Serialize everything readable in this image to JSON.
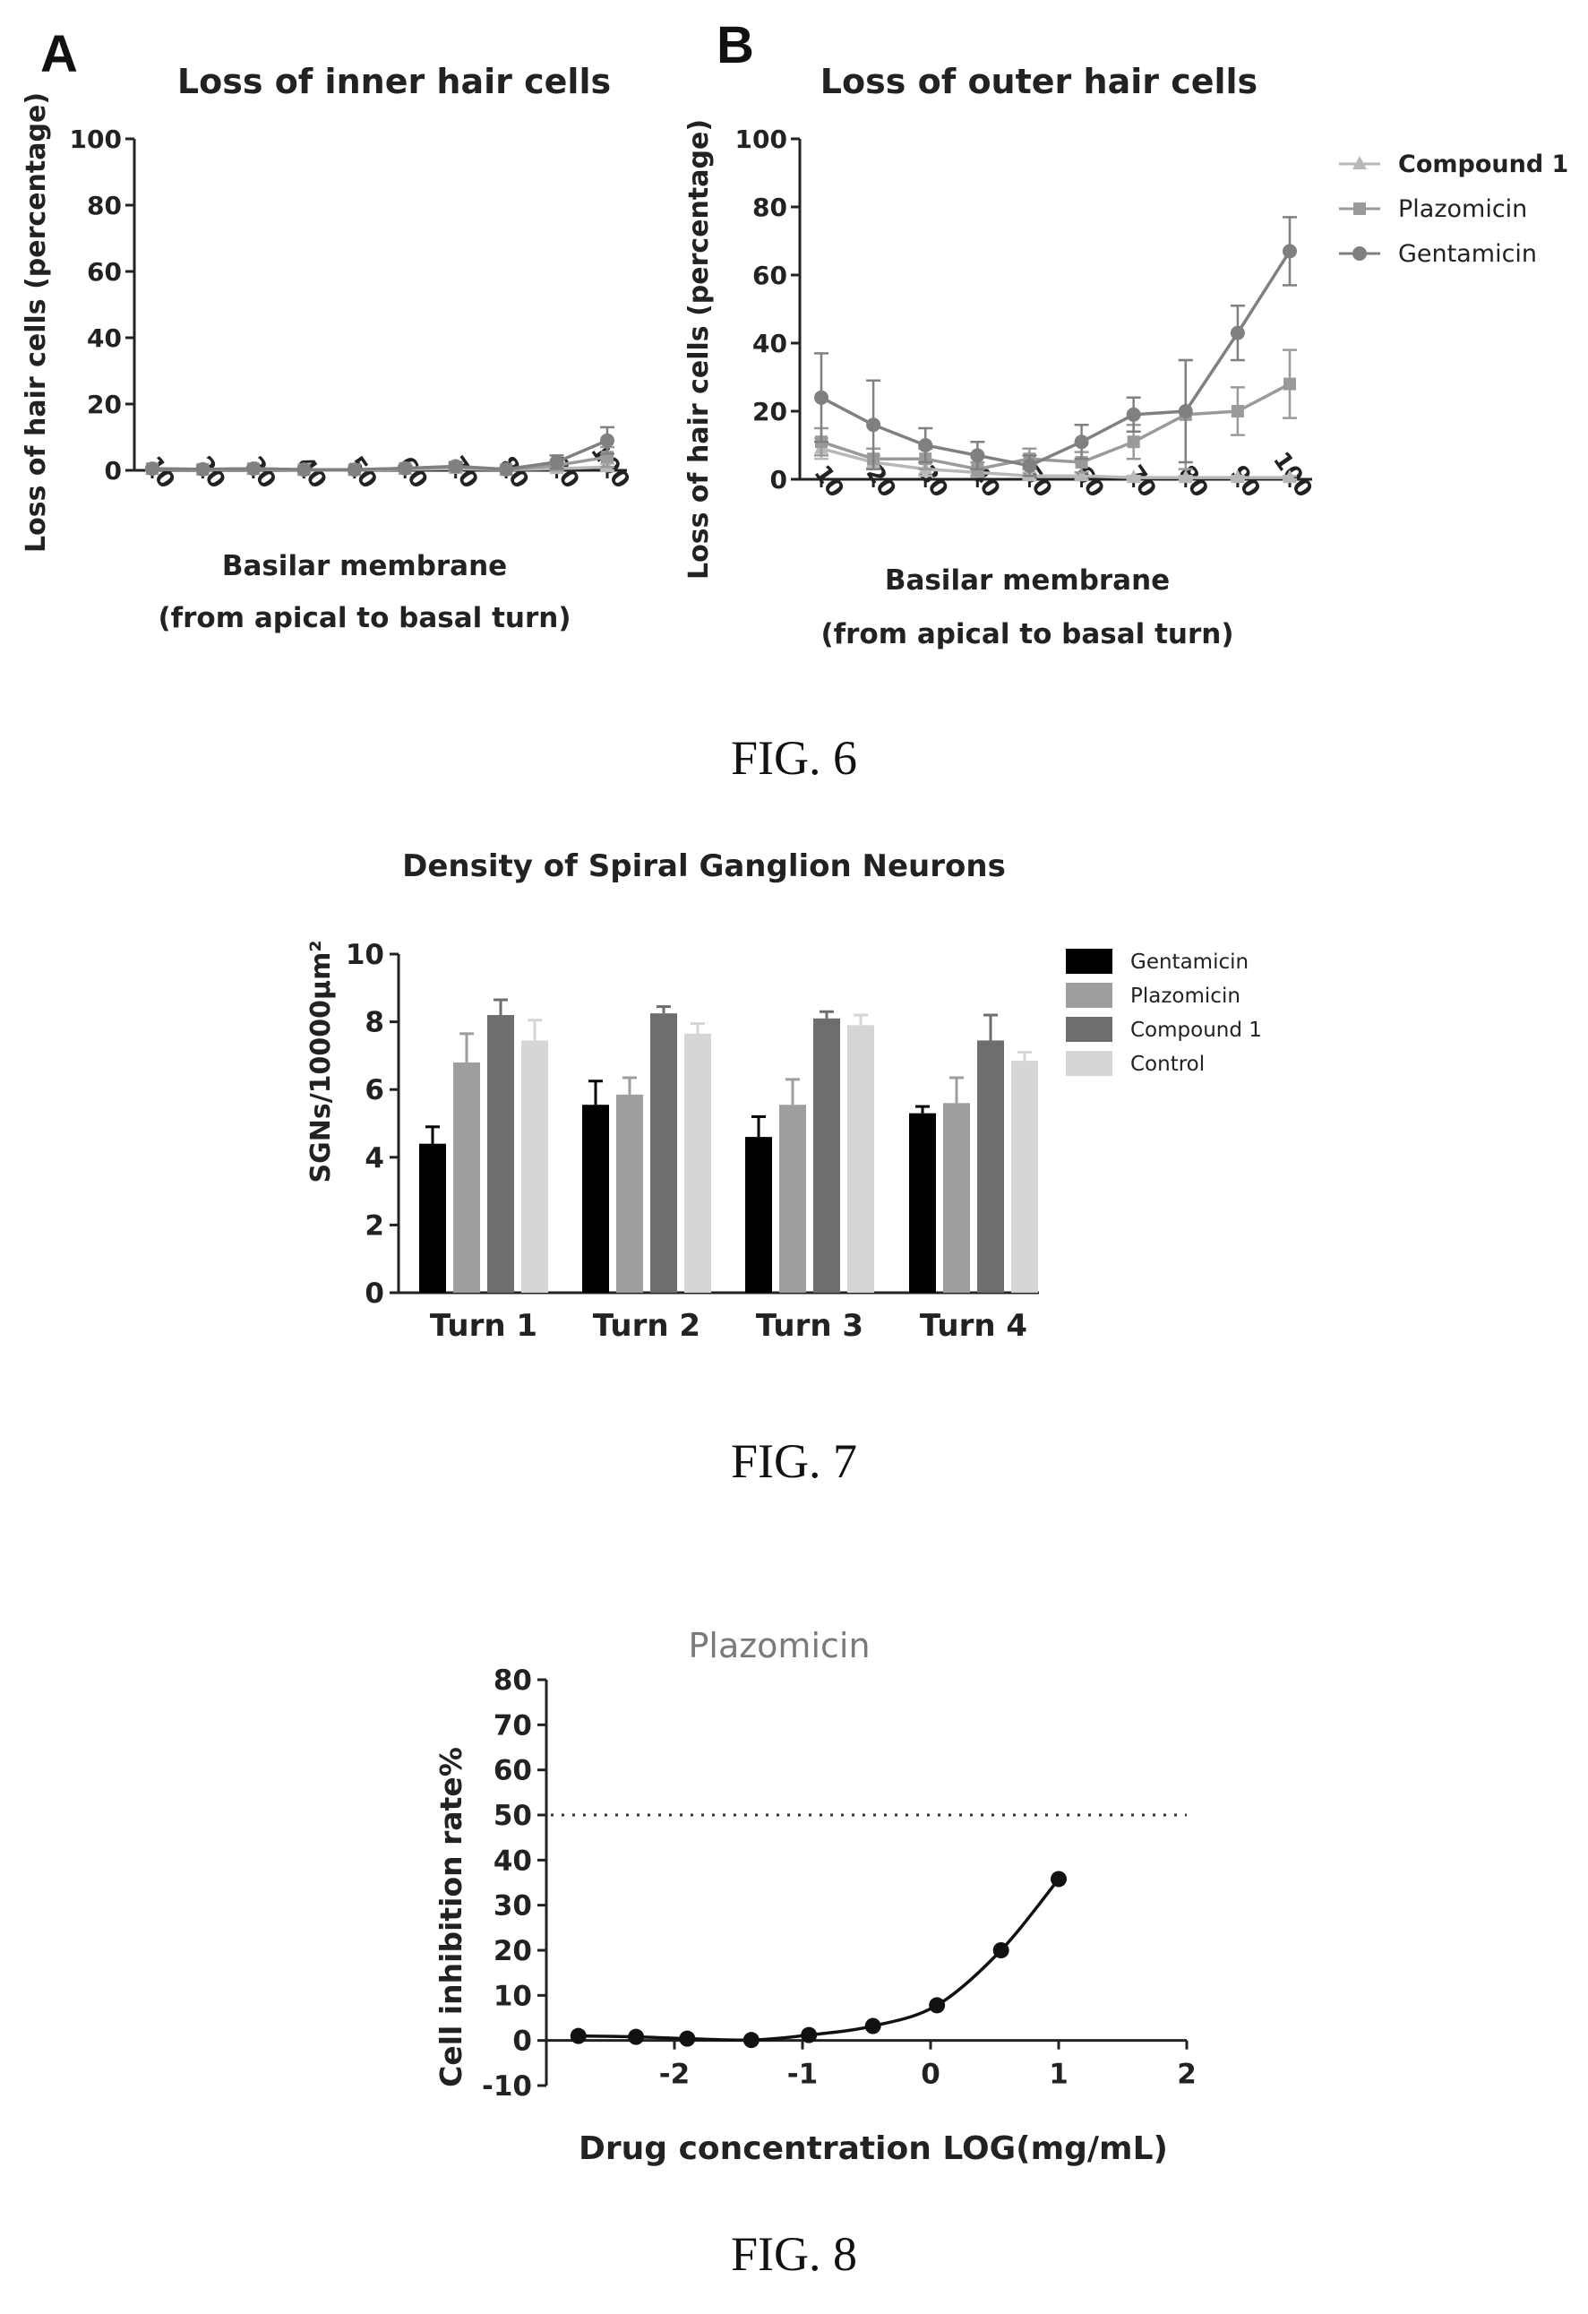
{
  "figures": {
    "fig6": {
      "caption": "FIG. 6",
      "panel_a": {
        "letter": "A",
        "title": "Loss of inner hair cells",
        "ylabel": "Loss of hair cells (percentage)",
        "xlabel_line1": "Basilar membrane",
        "xlabel_line2": "(from apical to basal turn)"
      },
      "panel_b": {
        "letter": "B",
        "title": "Loss of outer hair cells",
        "ylabel": "Loss of hair cells (percentage)",
        "xlabel_line1": "Basilar membrane",
        "xlabel_line2": "(from apical to basal turn)"
      }
    },
    "fig7": {
      "caption": "FIG. 7",
      "title": "Density of Spiral Ganglion Neurons",
      "ylabel": "SGNs/10000µm²"
    },
    "fig8": {
      "caption": "FIG. 8",
      "title": "Plazomicin",
      "ylabel": "Cell inhibition rate%",
      "xlabel": "Drug concentration LOG(mg/mL)"
    }
  },
  "colors": {
    "compound1": "#b8b8b8",
    "plazomicin": "#9a9a9a",
    "gentamicin": "#808080",
    "bar_gentamicin": "#000000",
    "bar_plazomicin": "#9e9e9e",
    "bar_compound1": "#6e6e6e",
    "bar_control": "#d6d6d6",
    "axis": "#222222"
  },
  "chart_data": [
    {
      "id": "fig6a",
      "type": "line",
      "title": "Loss of inner hair cells",
      "xlabel": "Basilar membrane (from apical to basal turn)",
      "ylabel": "Loss of hair cells (percentage)",
      "ylim": [
        0,
        100
      ],
      "yticks": [
        "0",
        "20",
        "40",
        "60",
        "80",
        "100"
      ],
      "categories": [
        "10",
        "20",
        "30",
        "40",
        "50",
        "60",
        "70",
        "80",
        "90",
        "100"
      ],
      "series": [
        {
          "values": [
            0.3,
            0.2,
            0.3,
            0.1,
            0.1,
            0.3,
            0.5,
            0.2,
            0.5,
            1.0
          ],
          "err": [
            0.2,
            0.2,
            0.3,
            0.2,
            0.2,
            0.5,
            0.8,
            0.3,
            0.8,
            1.0
          ]
        },
        {
          "values": [
            0.5,
            0.3,
            0.5,
            0.2,
            0.2,
            0.6,
            1.0,
            0.2,
            1.5,
            4.0
          ],
          "err": [
            0.4,
            0.3,
            0.4,
            0.3,
            0.2,
            0.7,
            1.0,
            0.3,
            1.5,
            3.0
          ]
        },
        {
          "values": [
            0.5,
            0.3,
            0.5,
            0.2,
            0.2,
            0.6,
            1.2,
            0.3,
            2.5,
            9.0
          ],
          "err": [
            0.4,
            0.3,
            0.4,
            0.3,
            0.2,
            0.8,
            1.2,
            0.4,
            2.0,
            4.0
          ]
        }
      ]
    },
    {
      "id": "fig6b",
      "type": "line",
      "title": "Loss of outer hair cells",
      "xlabel": "Basilar membrane (from apical to basal turn)",
      "ylabel": "Loss of hair cells (percentage)",
      "ylim": [
        0,
        100
      ],
      "yticks": [
        "0",
        "20",
        "40",
        "60",
        "80",
        "100"
      ],
      "categories": [
        "10",
        "20",
        "30",
        "40",
        "50",
        "60",
        "70",
        "80",
        "90",
        "100"
      ],
      "legend_position": "right",
      "series": [
        {
          "name": "Compound 1",
          "values": [
            9,
            5,
            3,
            2,
            1,
            1,
            0.5,
            0.5,
            0.5,
            0.5
          ],
          "err": [
            3,
            2,
            2,
            1,
            1,
            1,
            0.5,
            0.5,
            0.5,
            0.5
          ]
        },
        {
          "name": "Plazomicin",
          "values": [
            11,
            6,
            6,
            3,
            6,
            5,
            11,
            19,
            20,
            28
          ],
          "err": [
            4,
            3,
            3,
            2,
            3,
            3,
            5,
            16,
            7,
            10
          ]
        },
        {
          "name": "Gentamicin",
          "values": [
            24,
            16,
            10,
            7,
            4,
            11,
            19,
            20,
            43,
            67
          ],
          "err": [
            13,
            13,
            5,
            4,
            3,
            5,
            5,
            15,
            8,
            10
          ]
        }
      ]
    },
    {
      "id": "fig7",
      "type": "bar",
      "title": "Density of Spiral Ganglion Neurons",
      "ylabel": "SGNs/10000µm²",
      "ylim": [
        0,
        10
      ],
      "yticks": [
        "0",
        "2",
        "4",
        "6",
        "8",
        "10"
      ],
      "categories": [
        "Turn 1",
        "Turn 2",
        "Turn 3",
        "Turn 4"
      ],
      "legend_position": "right",
      "series": [
        {
          "name": "Gentamicin",
          "values": [
            4.4,
            5.55,
            4.6,
            5.3
          ],
          "err": [
            0.5,
            0.7,
            0.6,
            0.2
          ]
        },
        {
          "name": "Plazomicin",
          "values": [
            6.8,
            5.85,
            5.55,
            5.6
          ],
          "err": [
            0.85,
            0.5,
            0.75,
            0.75
          ]
        },
        {
          "name": "Compound 1",
          "values": [
            8.2,
            8.25,
            8.1,
            7.45
          ],
          "err": [
            0.45,
            0.2,
            0.2,
            0.75
          ]
        },
        {
          "name": "Control",
          "values": [
            7.45,
            7.65,
            7.9,
            6.85
          ],
          "err": [
            0.6,
            0.3,
            0.3,
            0.25
          ]
        }
      ]
    },
    {
      "id": "fig8",
      "type": "scatter",
      "title": "Plazomicin",
      "xlabel": "Drug concentration LOG(mg/mL)",
      "ylabel": "Cell inhibition rate%",
      "xlim": [
        -3,
        2
      ],
      "ylim": [
        -10,
        80
      ],
      "xticks": [
        "-2",
        "-1",
        "0",
        "1",
        "2"
      ],
      "yticks": [
        "-10",
        "0",
        "10",
        "20",
        "30",
        "40",
        "50",
        "60",
        "70",
        "80"
      ],
      "x": [
        -2.75,
        -2.3,
        -1.9,
        -1.4,
        -0.95,
        -0.45,
        0.05,
        0.55,
        1.0
      ],
      "y": [
        1.0,
        0.8,
        0.4,
        0.1,
        1.2,
        3.2,
        7.8,
        20.0,
        35.8
      ],
      "reference_line_y": 50
    }
  ]
}
